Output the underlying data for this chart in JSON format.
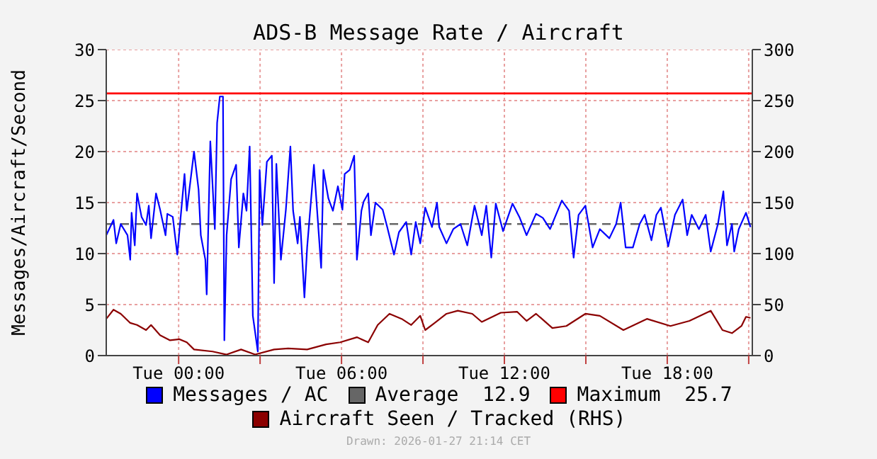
{
  "chart_data": {
    "type": "line",
    "title": "ADS-B Message Rate / Aircraft",
    "ylabel": "Messages/Aircraft/Second",
    "xlim": [
      "2026-01-26T21:20",
      "2026-01-27T21:08"
    ],
    "xticks": [
      {
        "value": "2026-01-27T00:00",
        "label": "Tue 00:00"
      },
      {
        "value": "2026-01-27T03:00",
        "label": null
      },
      {
        "value": "2026-01-27T06:00",
        "label": "Tue 06:00"
      },
      {
        "value": "2026-01-27T09:00",
        "label": null
      },
      {
        "value": "2026-01-27T12:00",
        "label": "Tue 12:00"
      },
      {
        "value": "2026-01-27T15:00",
        "label": null
      },
      {
        "value": "2026-01-27T18:00",
        "label": "Tue 18:00"
      },
      {
        "value": "2026-01-27T21:00",
        "label": null
      }
    ],
    "ylim": [
      0,
      30
    ],
    "yticks": [
      0,
      5,
      10,
      15,
      20,
      25,
      30
    ],
    "y2lim": [
      0,
      300
    ],
    "y2ticks": [
      0,
      50,
      100,
      150,
      200,
      250,
      300
    ],
    "grid": true,
    "legend": "bottom",
    "marker": "none",
    "series": [
      {
        "name": "Messages / AC",
        "color": "#0000ff",
        "x": [
          "2026-01-26T21:20",
          "2026-01-26T21:36",
          "2026-01-26T21:42",
          "2026-01-26T21:52",
          "2026-01-26T22:07",
          "2026-01-26T22:13",
          "2026-01-26T22:16",
          "2026-01-26T22:23",
          "2026-01-26T22:28",
          "2026-01-26T22:38",
          "2026-01-26T22:48",
          "2026-01-26T22:54",
          "2026-01-26T22:59",
          "2026-01-26T23:10",
          "2026-01-26T23:19",
          "2026-01-26T23:31",
          "2026-01-26T23:35",
          "2026-01-26T23:47",
          "2026-01-26T23:57",
          "2026-01-27T00:13",
          "2026-01-27T00:18",
          "2026-01-27T00:34",
          "2026-01-27T00:44",
          "2026-01-27T00:49",
          "2026-01-27T00:59",
          "2026-01-27T01:02",
          "2026-01-27T01:10",
          "2026-01-27T01:20",
          "2026-01-27T01:25",
          "2026-01-27T01:31",
          "2026-01-27T01:38",
          "2026-01-27T01:41",
          "2026-01-27T01:46",
          "2026-01-27T01:56",
          "2026-01-27T02:07",
          "2026-01-27T02:13",
          "2026-01-27T02:23",
          "2026-01-27T02:30",
          "2026-01-27T02:37",
          "2026-01-27T02:44",
          "2026-01-27T02:55",
          "2026-01-27T02:59",
          "2026-01-27T03:05",
          "2026-01-27T03:15",
          "2026-01-27T03:26",
          "2026-01-27T03:31",
          "2026-01-27T03:36",
          "2026-01-27T03:46",
          "2026-01-27T03:57",
          "2026-01-27T04:07",
          "2026-01-27T04:13",
          "2026-01-27T04:23",
          "2026-01-27T04:28",
          "2026-01-27T04:38",
          "2026-01-27T04:44",
          "2026-01-27T04:59",
          "2026-01-27T05:15",
          "2026-01-27T05:20",
          "2026-01-27T05:31",
          "2026-01-27T05:41",
          "2026-01-27T05:52",
          "2026-01-27T06:02",
          "2026-01-27T06:07",
          "2026-01-27T06:18",
          "2026-01-27T06:28",
          "2026-01-27T06:34",
          "2026-01-27T06:44",
          "2026-01-27T06:49",
          "2026-01-27T06:59",
          "2026-01-27T07:05",
          "2026-01-27T07:15",
          "2026-01-27T07:31",
          "2026-01-27T07:41",
          "2026-01-27T07:56",
          "2026-01-27T08:07",
          "2026-01-27T08:23",
          "2026-01-27T08:34",
          "2026-01-27T08:44",
          "2026-01-27T08:54",
          "2026-01-27T09:05",
          "2026-01-27T09:20",
          "2026-01-27T09:31",
          "2026-01-27T09:36",
          "2026-01-27T09:52",
          "2026-01-27T10:07",
          "2026-01-27T10:23",
          "2026-01-27T10:38",
          "2026-01-27T10:54",
          "2026-01-27T11:10",
          "2026-01-27T11:20",
          "2026-01-27T11:31",
          "2026-01-27T11:41",
          "2026-01-27T11:57",
          "2026-01-27T12:18",
          "2026-01-27T12:34",
          "2026-01-27T12:49",
          "2026-01-27T13:10",
          "2026-01-27T13:25",
          "2026-01-27T13:41",
          "2026-01-27T14:07",
          "2026-01-27T14:23",
          "2026-01-27T14:33",
          "2026-01-27T14:44",
          "2026-01-27T14:59",
          "2026-01-27T15:15",
          "2026-01-27T15:31",
          "2026-01-27T15:52",
          "2026-01-27T16:07",
          "2026-01-27T16:17",
          "2026-01-27T16:28",
          "2026-01-27T16:44",
          "2026-01-27T16:59",
          "2026-01-27T17:10",
          "2026-01-27T17:25",
          "2026-01-27T17:36",
          "2026-01-27T17:46",
          "2026-01-27T18:02",
          "2026-01-27T18:17",
          "2026-01-27T18:34",
          "2026-01-27T18:44",
          "2026-01-27T18:54",
          "2026-01-27T19:10",
          "2026-01-27T19:25",
          "2026-01-27T19:36",
          "2026-01-27T19:52",
          "2026-01-27T20:04",
          "2026-01-27T20:12",
          "2026-01-27T20:23",
          "2026-01-27T20:28",
          "2026-01-27T20:38",
          "2026-01-27T20:54",
          "2026-01-27T21:04"
        ],
        "values": [
          11.8,
          13.3,
          11,
          12.9,
          11.8,
          9.4,
          14,
          10.8,
          15.9,
          13.6,
          12.8,
          14.7,
          11.5,
          15.9,
          14.3,
          11.8,
          13.9,
          13.6,
          9.9,
          17.8,
          14.2,
          20,
          16.3,
          11.8,
          9.4,
          6,
          21,
          12.4,
          22.8,
          25.4,
          25.4,
          1.5,
          11.8,
          17.3,
          18.7,
          10.6,
          15.9,
          14.2,
          20.5,
          3.9,
          0.4,
          18.2,
          12.8,
          19,
          19.6,
          7.1,
          18.8,
          9.4,
          14.3,
          20.5,
          14.2,
          11,
          13.6,
          5.7,
          10.6,
          18.7,
          8.6,
          18.2,
          15.4,
          14.2,
          16.6,
          14.3,
          17.8,
          18.2,
          19.6,
          9.4,
          14.2,
          15.1,
          15.9,
          11.8,
          15,
          14.3,
          12.6,
          9.9,
          12.1,
          13.1,
          9.9,
          13.1,
          11,
          14.5,
          12.6,
          15,
          12.6,
          11,
          12.4,
          12.9,
          10.8,
          14.7,
          11.8,
          14.7,
          9.6,
          14.9,
          12.2,
          14.9,
          13.5,
          11.8,
          13.9,
          13.5,
          12.4,
          15.2,
          14.2,
          9.6,
          13.8,
          14.7,
          10.6,
          12.4,
          11.5,
          12.9,
          15,
          10.6,
          10.6,
          12.9,
          13.8,
          11.3,
          13.8,
          14.5,
          10.7,
          13.8,
          15.3,
          11.8,
          13.8,
          12.4,
          13.8,
          10.2,
          12.9,
          16.1,
          10.8,
          12.9,
          10.2,
          12.4,
          14,
          12.6
        ]
      },
      {
        "name": "Aircraft Seen / Tracked (RHS)",
        "color": "#8b0000",
        "axis": "y2",
        "x": [
          "2026-01-26T21:20",
          "2026-01-26T21:36",
          "2026-01-26T21:52",
          "2026-01-26T22:13",
          "2026-01-26T22:28",
          "2026-01-26T22:48",
          "2026-01-26T22:59",
          "2026-01-26T23:19",
          "2026-01-26T23:41",
          "2026-01-27T00:02",
          "2026-01-27T00:18",
          "2026-01-27T00:34",
          "2026-01-27T01:15",
          "2026-01-27T01:46",
          "2026-01-27T02:18",
          "2026-01-27T02:49",
          "2026-01-27T03:31",
          "2026-01-27T04:02",
          "2026-01-27T04:44",
          "2026-01-27T05:26",
          "2026-01-27T05:57",
          "2026-01-27T06:34",
          "2026-01-27T06:59",
          "2026-01-27T07:20",
          "2026-01-27T07:46",
          "2026-01-27T08:13",
          "2026-01-27T08:34",
          "2026-01-27T08:54",
          "2026-01-27T09:05",
          "2026-01-27T09:26",
          "2026-01-27T09:52",
          "2026-01-27T10:17",
          "2026-01-27T10:49",
          "2026-01-27T11:10",
          "2026-01-27T11:52",
          "2026-01-27T12:28",
          "2026-01-27T12:49",
          "2026-01-27T13:10",
          "2026-01-27T13:46",
          "2026-01-27T14:17",
          "2026-01-27T14:59",
          "2026-01-27T15:31",
          "2026-01-27T16:23",
          "2026-01-27T17:15",
          "2026-01-27T18:07",
          "2026-01-27T18:49",
          "2026-01-27T19:36",
          "2026-01-27T20:02",
          "2026-01-27T20:23",
          "2026-01-27T20:44",
          "2026-01-27T20:54",
          "2026-01-27T21:04"
        ],
        "values": [
          36,
          45,
          41,
          32,
          30,
          25,
          30,
          20,
          15,
          16,
          13,
          6,
          4,
          1,
          6,
          1,
          6,
          7,
          6,
          11,
          13,
          18,
          13,
          30,
          41,
          36,
          30,
          39,
          25,
          32,
          41,
          44,
          41,
          33,
          42,
          43,
          34,
          41,
          27,
          29,
          41,
          39,
          25,
          36,
          29,
          34,
          44,
          25,
          22,
          29,
          38,
          37
        ]
      }
    ],
    "ref_lines": [
      {
        "axis": "y",
        "value": 12.9,
        "label": "Average  12.9",
        "color": "#666666",
        "line_style": "dashed"
      },
      {
        "axis": "y",
        "value": 25.7,
        "label": "Maximum  25.7",
        "color": "#ff0000",
        "line_style": "solid"
      }
    ],
    "annotations": [
      "Drawn: 2026-01-27 21:14 CET"
    ]
  }
}
